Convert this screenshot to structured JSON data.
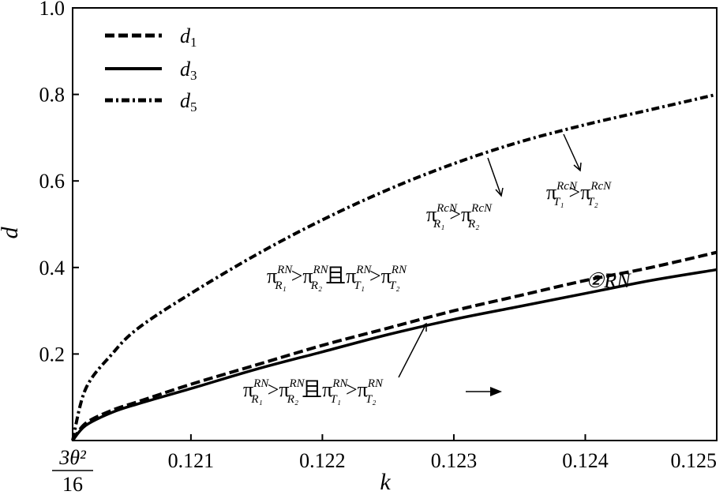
{
  "chart_data": {
    "type": "line",
    "xlabel": "k",
    "ylabel": "d",
    "xlim": [
      0.1201,
      0.125
    ],
    "ylim": [
      0.0,
      1.0
    ],
    "grid": false,
    "legend_position": "top-left",
    "x_ticks": [
      {
        "value": 0.1201,
        "label": "3θ²/16",
        "numerator": "3θ²",
        "denominator": "16"
      },
      {
        "value": 0.121,
        "label": "0.121"
      },
      {
        "value": 0.122,
        "label": "0.122"
      },
      {
        "value": 0.123,
        "label": "0.123"
      },
      {
        "value": 0.124,
        "label": "0.124"
      },
      {
        "value": 0.125,
        "label": "0.125"
      }
    ],
    "y_ticks": [
      {
        "value": 0.2,
        "label": "0.2"
      },
      {
        "value": 0.4,
        "label": "0.4"
      },
      {
        "value": 0.6,
        "label": "0.6"
      },
      {
        "value": 0.8,
        "label": "0.8"
      },
      {
        "value": 1.0,
        "label": "1.0"
      }
    ],
    "series": [
      {
        "name": "d1",
        "name_base": "d",
        "name_sub": "1",
        "style": "dashed",
        "x": [
          0.1201,
          0.1202,
          0.1204,
          0.1206,
          0.121,
          0.1215,
          0.122,
          0.1225,
          0.123,
          0.1235,
          0.124,
          0.1245,
          0.125
        ],
        "values": [
          0.0,
          0.04,
          0.07,
          0.09,
          0.13,
          0.175,
          0.22,
          0.26,
          0.3,
          0.335,
          0.37,
          0.4,
          0.435
        ]
      },
      {
        "name": "d3",
        "name_base": "d",
        "name_sub": "3",
        "style": "solid",
        "x": [
          0.1201,
          0.1202,
          0.1204,
          0.1206,
          0.121,
          0.1215,
          0.122,
          0.1225,
          0.123,
          0.1235,
          0.124,
          0.1245,
          0.125
        ],
        "values": [
          0.0,
          0.035,
          0.065,
          0.085,
          0.12,
          0.165,
          0.205,
          0.245,
          0.28,
          0.31,
          0.34,
          0.37,
          0.395
        ]
      },
      {
        "name": "d5",
        "name_base": "d",
        "name_sub": "5",
        "style": "dashdot",
        "x": [
          0.1201,
          0.1202,
          0.1204,
          0.1206,
          0.121,
          0.1215,
          0.122,
          0.1225,
          0.123,
          0.1235,
          0.124,
          0.1245,
          0.125
        ],
        "values": [
          0.0,
          0.12,
          0.2,
          0.26,
          0.34,
          0.43,
          0.51,
          0.58,
          0.64,
          0.69,
          0.73,
          0.765,
          0.8
        ]
      }
    ],
    "annotations": [
      {
        "id": "ann-rcn-r",
        "base": "π",
        "lhs_sub": "R₁",
        "lhs_sup": "RcN",
        "op": ">",
        "rhs_sub": "R₂",
        "rhs_sup": "RcN"
      },
      {
        "id": "ann-rcn-t",
        "base": "π",
        "lhs_sub": "T₁",
        "lhs_sup": "RcN",
        "op": ">",
        "rhs_sub": "T₂",
        "rhs_sup": "RcN"
      },
      {
        "id": "ann-rn-middle",
        "base": "π",
        "lhs_sub": "R₁",
        "lhs_sup": "RN",
        "op": ">",
        "rhs_sub": "R₂",
        "rhs_sup": "RN",
        "conj": "且",
        "lhs2_sub": "T₁",
        "lhs2_sup": "RN",
        "op2": ">",
        "rhs2_sub": "T₂",
        "rhs2_sup": "RN"
      },
      {
        "id": "ann-rn-bottom",
        "base": "π",
        "lhs_sub": "R₁",
        "lhs_sup": "RN",
        "op": ">",
        "rhs_sub": "R₂",
        "rhs_sup": "RN",
        "conj": "且",
        "lhs2_sub": "T₁",
        "lhs2_sup": "RN",
        "op2": ">",
        "rhs2_sub": "T₂",
        "rhs2_sup": "RN"
      },
      {
        "id": "ann-region-rn",
        "text": "②RN"
      }
    ]
  }
}
